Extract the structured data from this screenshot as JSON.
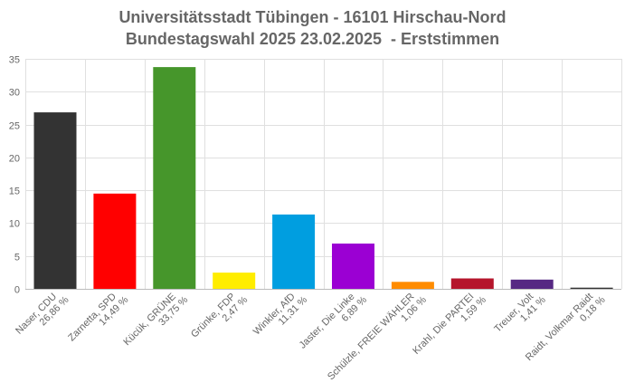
{
  "chart_data": {
    "type": "bar",
    "title": "Universitätsstadt Tübingen - 16101 Hirschau-Nord",
    "subtitle": "Bundestagswahl 2025 23.02.2025  - Erststimmen",
    "xlabel": "",
    "ylabel": "",
    "ylim": [
      0,
      35
    ],
    "yticks": [
      0,
      5,
      10,
      15,
      20,
      25,
      30,
      35
    ],
    "grid": true,
    "legend": "none",
    "categories": [
      "Naser, CDU",
      "Zarnetta, SPD",
      "Kücük, GRÜNE",
      "Grünke, FDP",
      "Winkler, AfD",
      "Jaster, Die Linke",
      "Schülzle, FREIE WÄHLER",
      "Krahl, Die PARTEI",
      "Treuer, Volt",
      "Raidt, Volkmar Raidt"
    ],
    "values": [
      26.86,
      14.49,
      33.75,
      2.47,
      11.31,
      6.89,
      1.06,
      1.59,
      1.41,
      0.18
    ],
    "value_labels": [
      "26,86 %",
      "14,49 %",
      "33,75 %",
      "2,47 %",
      "11,31 %",
      "6,89 %",
      "1,06 %",
      "1,59 %",
      "1,41 %",
      "0,18 %"
    ],
    "colors": [
      "#333333",
      "#ff0000",
      "#46962b",
      "#ffed00",
      "#009ee0",
      "#9b00d3",
      "#ff8c00",
      "#b5152b",
      "#562883",
      "#333333"
    ]
  }
}
